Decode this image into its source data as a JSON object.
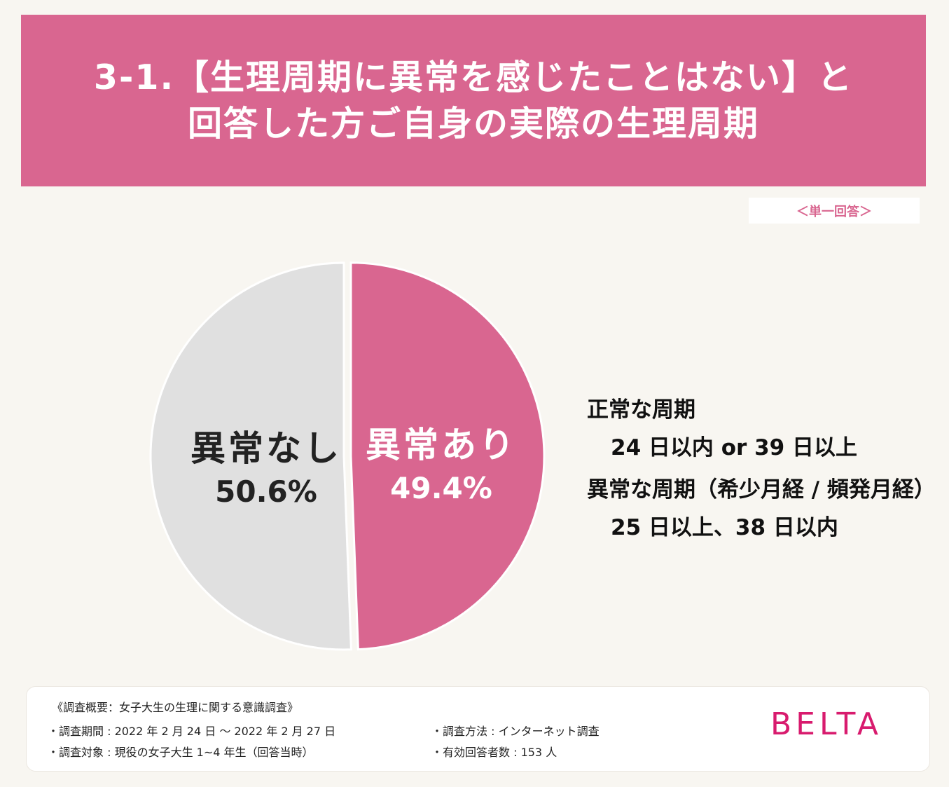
{
  "header": {
    "title_line1": "3-1.【生理周期に異常を感じたことはない】と",
    "title_line2": "回答した方ご自身の実際の生理周期"
  },
  "answer_type": "＜単一回答＞",
  "chart_data": {
    "type": "pie",
    "title": "3-1.【生理周期に異常を感じたことはない】と回答した方ご自身の実際の生理周期",
    "slices": [
      {
        "name": "異常あり",
        "value": 49.4,
        "label": "49.4%",
        "color": "#d96690"
      },
      {
        "name": "異常なし",
        "value": 50.6,
        "label": "50.6%",
        "color": "#e0e0e0"
      }
    ],
    "start": "12 o'clock",
    "direction": "clockwise"
  },
  "notes": {
    "normal_heading": "正常な周期",
    "normal_detail": "24 日以内 or 39 日以上",
    "abnormal_heading": "異常な周期（希少月経 / 頻発月経）",
    "abnormal_detail": "25 日以上、38 日以内"
  },
  "footer": {
    "title": "《調査概要：女子大生の生理に関する意識調査》",
    "period": "・調査期間 : 2022 年 2 月 24 日 ～ 2022 年 2 月 27 日",
    "target": "・調査対象 : 現役の女子大生 1~4 年生（回答当時）",
    "method": "・調査方法 : インターネット調査",
    "respondents": "・有効回答者数 : 153 人"
  },
  "logo": "BELTA",
  "colors": {
    "accent": "#d96690",
    "slice_other": "#e0e0e0",
    "background": "#f8f6f1",
    "logo": "#d81b6e"
  }
}
